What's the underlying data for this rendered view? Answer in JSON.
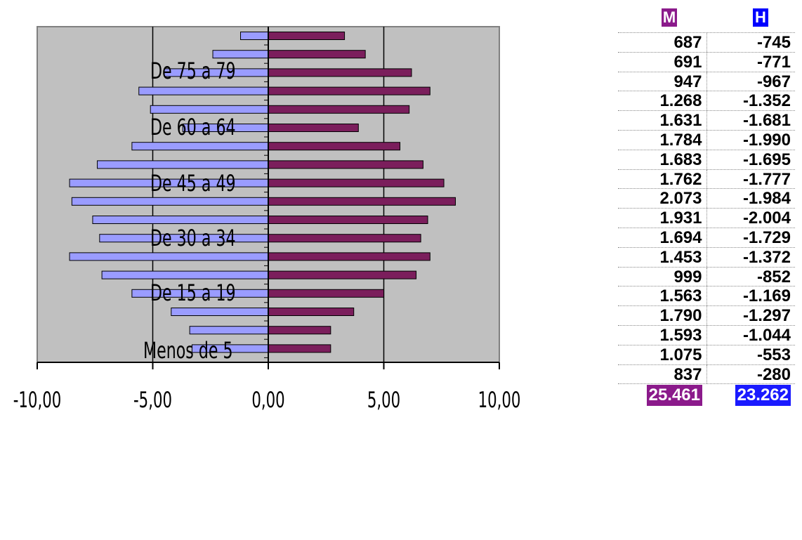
{
  "colors": {
    "women": "#7b1e5c",
    "men": "#9a9cff",
    "plot_bg": "#c0c0c0",
    "header_m": "#8b1a8b",
    "header_h": "#0000ff",
    "total_m": "#8b1a8b",
    "total_h": "#1a1aff"
  },
  "chart_data": {
    "type": "bar",
    "orientation": "horizontal",
    "title": "",
    "xlabel": "",
    "ylabel": "",
    "xlim": [
      -10,
      10
    ],
    "x_ticks": [
      -10,
      -5,
      0,
      5,
      10
    ],
    "x_tick_labels": [
      "-10,00",
      "-5,00",
      "0,00",
      "5,00",
      "10,00"
    ],
    "visible_category_labels": [
      "De 75 a 79",
      "De 60 a 64",
      "De 45 a 49",
      "De 30 a 34",
      "De 15 a 19",
      "Menos de 5"
    ],
    "grid": true,
    "legend": "none",
    "bars_top_to_bottom": {
      "women": [
        3.3,
        4.2,
        6.2,
        7.0,
        6.1,
        3.9,
        5.7,
        6.7,
        7.6,
        8.1,
        6.9,
        6.6,
        7.0,
        6.4,
        5.0,
        3.7,
        2.7,
        2.7
      ],
      "men": [
        -1.2,
        -2.4,
        -4.5,
        -5.6,
        -5.1,
        -3.7,
        -5.9,
        -7.4,
        -8.6,
        -8.5,
        -7.6,
        -7.3,
        -8.6,
        -7.2,
        -5.9,
        -4.2,
        -3.4,
        -3.3
      ]
    }
  },
  "table": {
    "header_m": "M",
    "header_h": "H",
    "rows": [
      {
        "m": "687",
        "h": "-745"
      },
      {
        "m": "691",
        "h": "-771"
      },
      {
        "m": "947",
        "h": "-967"
      },
      {
        "m": "1.268",
        "h": "-1.352"
      },
      {
        "m": "1.631",
        "h": "-1.681"
      },
      {
        "m": "1.784",
        "h": "-1.990"
      },
      {
        "m": "1.683",
        "h": "-1.695"
      },
      {
        "m": "1.762",
        "h": "-1.777"
      },
      {
        "m": "2.073",
        "h": "-1.984"
      },
      {
        "m": "1.931",
        "h": "-2.004"
      },
      {
        "m": "1.694",
        "h": "-1.729"
      },
      {
        "m": "1.453",
        "h": "-1.372"
      },
      {
        "m": "999",
        "h": "-852"
      },
      {
        "m": "1.563",
        "h": "-1.169"
      },
      {
        "m": "1.790",
        "h": "-1.297"
      },
      {
        "m": "1.593",
        "h": "-1.044"
      },
      {
        "m": "1.075",
        "h": "-553"
      },
      {
        "m": "837",
        "h": "-280"
      }
    ],
    "total_m": "25.461",
    "total_h": "23.262"
  }
}
